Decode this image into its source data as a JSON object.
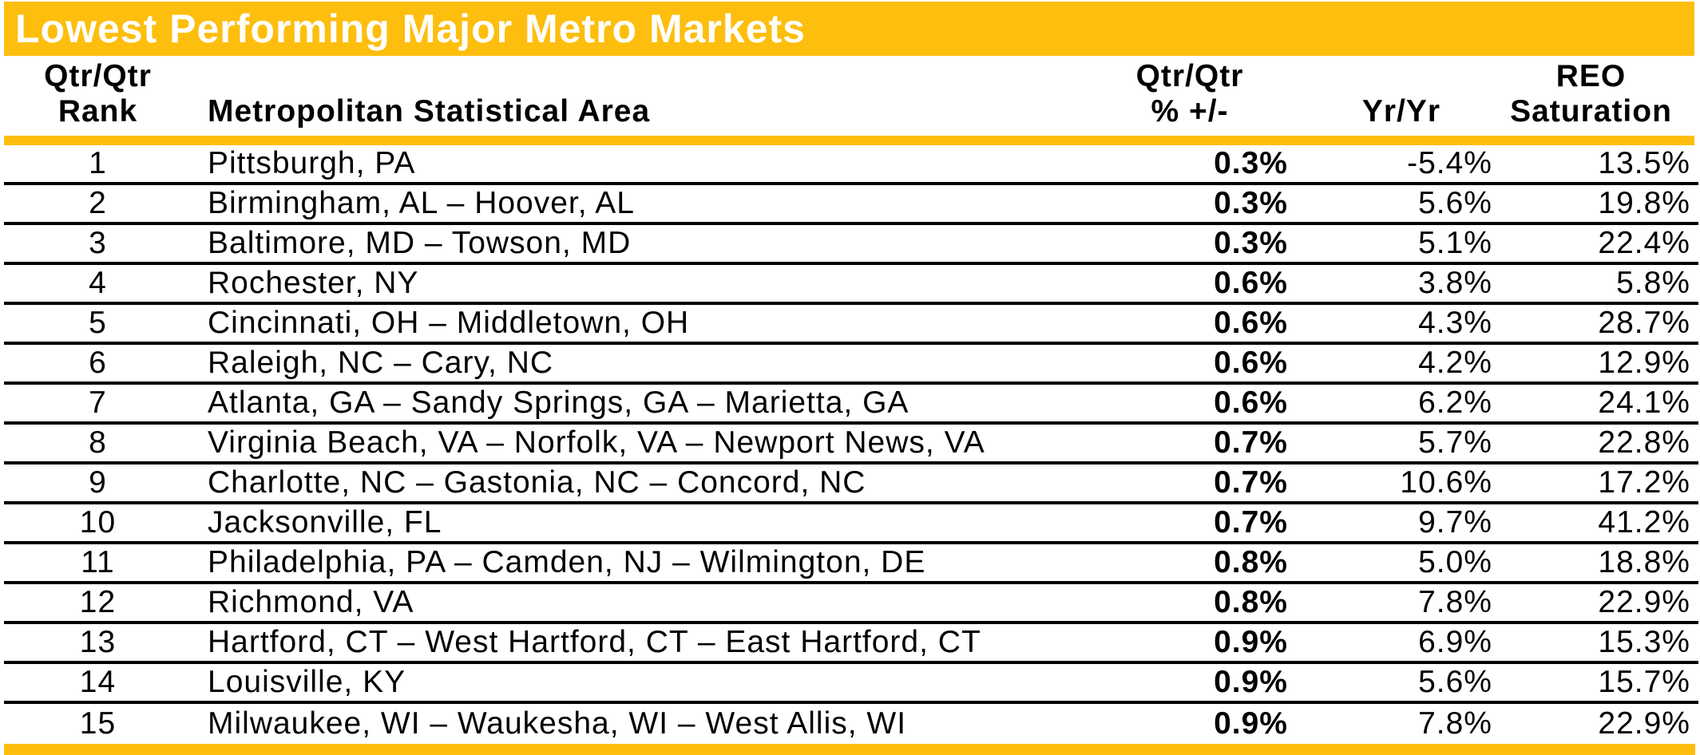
{
  "title": "Lowest Performing Major Metro Markets",
  "colors": {
    "gold": "#FDBE0E",
    "title_text": "#FFFFFF",
    "body_text": "#000000",
    "row_line": "#000000"
  },
  "header": {
    "rank_line1": "Qtr/Qtr",
    "rank_line2": "Rank",
    "msa": "Metropolitan Statistical Area",
    "qtr_line1": "Qtr/Qtr",
    "qtr_line2": "% +/-",
    "yr": "Yr/Yr",
    "reo_line1": "REO",
    "reo_line2": "Saturation"
  },
  "chart_data": {
    "type": "table",
    "title": "Lowest Performing Major Metro Markets",
    "columns": [
      "Qtr/Qtr Rank",
      "Metropolitan Statistical Area",
      "Qtr/Qtr % +/-",
      "Yr/Yr",
      "REO Saturation"
    ],
    "rows": [
      [
        "1",
        "Pittsburgh, PA",
        "0.3%",
        "-5.4%",
        "13.5%"
      ],
      [
        "2",
        "Birmingham, AL – Hoover, AL",
        "0.3%",
        "5.6%",
        "19.8%"
      ],
      [
        "3",
        "Baltimore, MD – Towson, MD",
        "0.3%",
        "5.1%",
        "22.4%"
      ],
      [
        "4",
        "Rochester, NY",
        "0.6%",
        "3.8%",
        "5.8%"
      ],
      [
        "5",
        "Cincinnati, OH – Middletown, OH",
        "0.6%",
        "4.3%",
        "28.7%"
      ],
      [
        "6",
        "Raleigh, NC – Cary, NC",
        "0.6%",
        "4.2%",
        "12.9%"
      ],
      [
        "7",
        "Atlanta, GA – Sandy Springs, GA – Marietta, GA",
        "0.6%",
        "6.2%",
        "24.1%"
      ],
      [
        "8",
        "Virginia Beach, VA – Norfolk, VA – Newport News, VA",
        "0.7%",
        "5.7%",
        "22.8%"
      ],
      [
        "9",
        "Charlotte, NC – Gastonia, NC – Concord, NC",
        "0.7%",
        "10.6%",
        "17.2%"
      ],
      [
        "10",
        "Jacksonville, FL",
        "0.7%",
        "9.7%",
        "41.2%"
      ],
      [
        "11",
        "Philadelphia, PA – Camden, NJ – Wilmington, DE",
        "0.8%",
        "5.0%",
        "18.8%"
      ],
      [
        "12",
        "Richmond, VA",
        "0.8%",
        "7.8%",
        "22.9%"
      ],
      [
        "13",
        "Hartford, CT – West Hartford, CT – East Hartford, CT",
        "0.9%",
        "6.9%",
        "15.3%"
      ],
      [
        "14",
        "Louisville, KY",
        "0.9%",
        "5.6%",
        "15.7%"
      ],
      [
        "15",
        "Milwaukee, WI – Waukesha, WI – West Allis, WI",
        "0.9%",
        "7.8%",
        "22.9%"
      ]
    ]
  }
}
